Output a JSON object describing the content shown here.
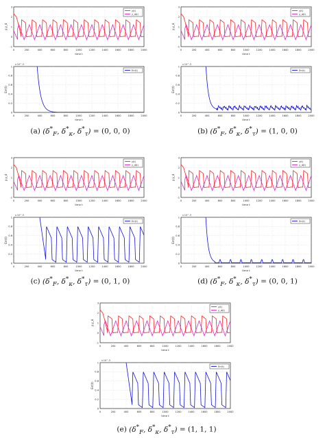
{
  "legend_top": [
    "y(t)",
    "y_d(t)"
  ],
  "legend_bottom": "Err(t)",
  "ylabel_top": "y,y_d",
  "ylabel_bottom": "Err(t)",
  "xlabel": "time t",
  "exponent_label": "x 10^-3",
  "colors": {
    "y": "#ff2020",
    "yd": "#e020c8",
    "err": "#1010e0",
    "grid": "#c8c8c8"
  },
  "top_yticks": [
    "-1",
    "0",
    "1",
    "2",
    "3"
  ],
  "bottom_yticks": [
    "0",
    "0.2",
    "0.4",
    "0.6",
    "0.8",
    "1"
  ],
  "xticks": [
    "0",
    "200",
    "400",
    "600",
    "800",
    "1000",
    "1200",
    "1400",
    "1600",
    "1800",
    "2000"
  ],
  "panels": [
    {
      "id": "a",
      "caption_label": "(a)",
      "caption_values": "= (0, 0, 0)",
      "err_mode": "decay"
    },
    {
      "id": "b",
      "caption_label": "(b)",
      "caption_values": "= (1, 0, 0)",
      "err_mode": "ripple"
    },
    {
      "id": "c",
      "caption_label": "(c)",
      "caption_values": "= (0, 1, 0)",
      "err_mode": "pulse"
    },
    {
      "id": "d",
      "caption_label": "(d)",
      "caption_values": "= (0, 0, 1)",
      "err_mode": "bumps"
    },
    {
      "id": "e",
      "caption_label": "(e)",
      "caption_values": "= (1, 1, 1)",
      "err_mode": "pulse"
    }
  ],
  "caption_symbols": "(δ*_F, δ*_κ, δ*_τ)"
}
